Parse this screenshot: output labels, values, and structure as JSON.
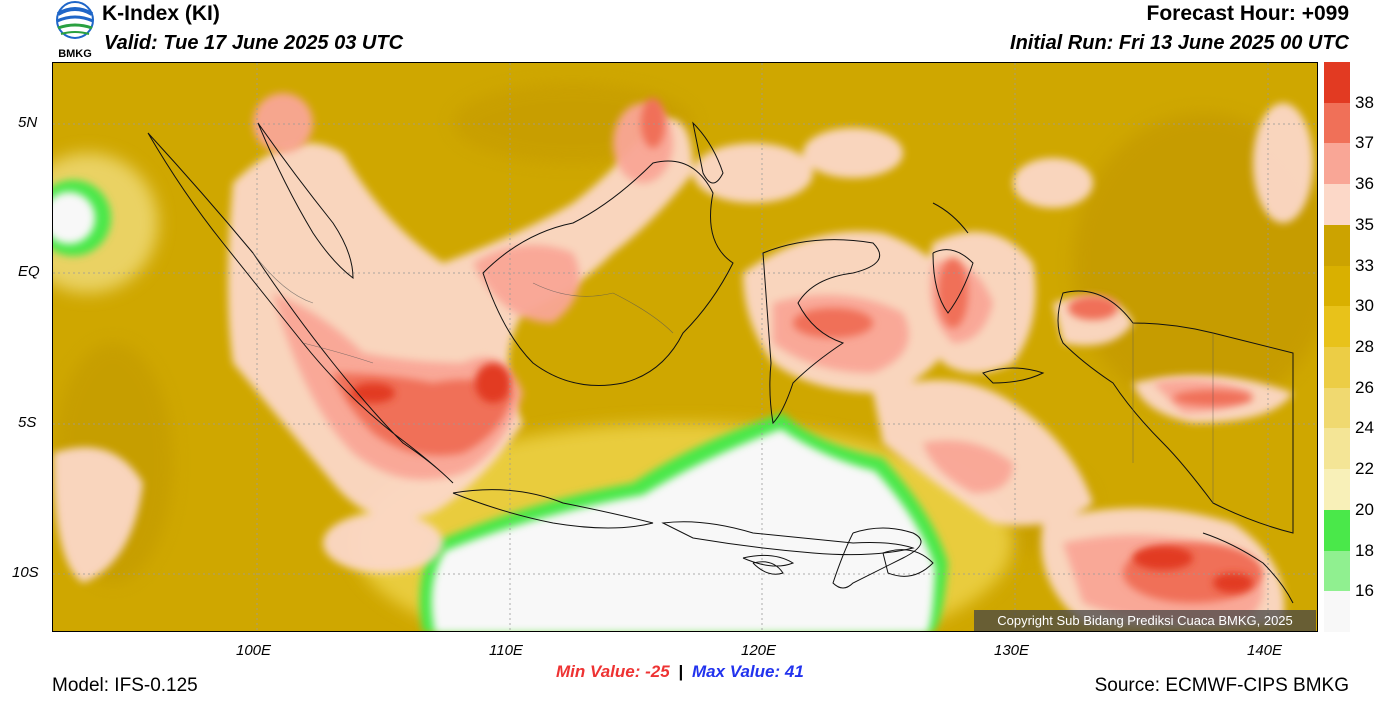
{
  "header": {
    "title": "K-Index (KI)",
    "valid": "Valid: Tue 17 June 2025 03 UTC",
    "forecast_hour": "Forecast Hour: +099",
    "initial_run": "Initial Run: Fri 13 June 2025 00 UTC",
    "logo_text": "BMKG"
  },
  "axes": {
    "lat_labels": [
      "5N",
      "EQ",
      "5S",
      "10S"
    ],
    "lon_labels": [
      "100E",
      "110E",
      "120E",
      "130E",
      "140E"
    ]
  },
  "colorbar": {
    "labels": [
      "38",
      "37",
      "36",
      "35",
      "33",
      "30",
      "28",
      "26",
      "24",
      "22",
      "20",
      "18",
      "16"
    ],
    "colors": [
      "#e23a22",
      "#f07058",
      "#f9a696",
      "#fcd8c8",
      "#cca300",
      "#d9b000",
      "#e8c21a",
      "#eccd45",
      "#f0d970",
      "#f4e596",
      "#f8f0b8",
      "#4ae84a",
      "#90f090",
      "#f8f8f8"
    ]
  },
  "stats": {
    "min_label": "Min Value:",
    "min_value": "-25",
    "max_label": "Max Value:",
    "max_value": "41"
  },
  "footer": {
    "model": "Model: IFS-0.125",
    "source": "Source: ECMWF-CIPS BMKG",
    "copyright": "Copyright Sub Bidang Prediksi Cuaca BMKG, 2025"
  }
}
